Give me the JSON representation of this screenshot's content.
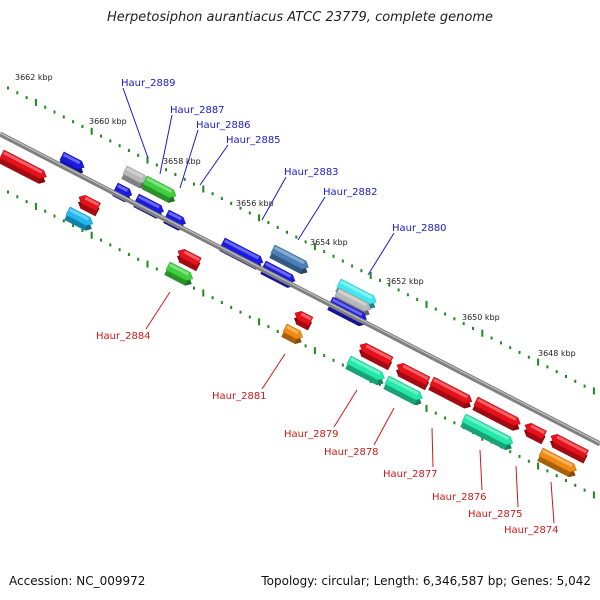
{
  "title": "Herpetosiphon aurantiacus ATCC 23779, complete genome",
  "footer": {
    "accession": "Accession: NC_009972",
    "info": "Topology: circular; Length: 6,346,587 bp; Genes: 5,042"
  },
  "ticks": [
    "3662 kbp",
    "3660 kbp",
    "3658 kbp",
    "3656 kbp",
    "3654 kbp",
    "3652 kbp",
    "3650 kbp",
    "3648 kbp"
  ],
  "genes_forward": [
    "Haur_2889",
    "Haur_2887",
    "Haur_2886",
    "Haur_2885",
    "Haur_2883",
    "Haur_2882",
    "Haur_2880"
  ],
  "genes_reverse": [
    "Haur_2884",
    "Haur_2881",
    "Haur_2879",
    "Haur_2878",
    "Haur_2877",
    "Haur_2876",
    "Haur_2875",
    "Haur_2874"
  ],
  "colors": {
    "forward_label": "#1a1acc",
    "reverse_label": "#cc1a1a",
    "red": "#e8101a",
    "blue": "#1a1ae0",
    "green": "#3ecf3e",
    "teal": "#22e8a8",
    "cyan": "#20b8ee",
    "steel": "#4a7fb8",
    "orange": "#f08a10",
    "gray": "#b8b8b8",
    "cyan_light": "#40e8f0",
    "tick": "#1a8a1a",
    "backbone": "#808080"
  }
}
